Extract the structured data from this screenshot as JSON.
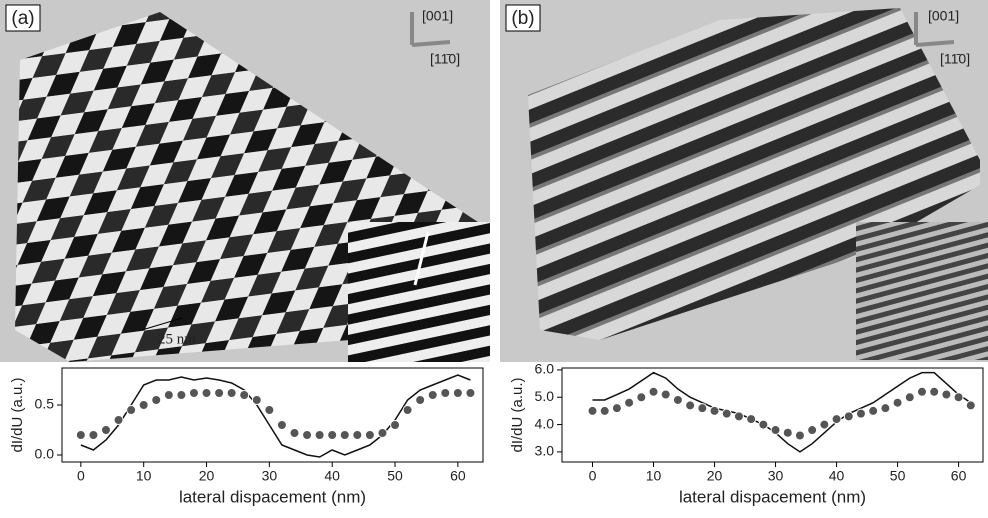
{
  "panels": [
    {
      "label": "(a)",
      "axis_up": "[001]",
      "axis_right": "[11̄0]",
      "scale_bar": "25 nm"
    },
    {
      "label": "(b)",
      "axis_up": "[001]",
      "axis_right": "[11̄0]"
    }
  ],
  "chart_data": [
    {
      "type": "line",
      "ylabel": "dI/dU (a.u.)",
      "xlabel": "lateral dispacement (nm)",
      "x": [
        0,
        2,
        4,
        6,
        8,
        10,
        12,
        14,
        16,
        18,
        20,
        22,
        24,
        26,
        28,
        30,
        32,
        34,
        36,
        38,
        40,
        42,
        44,
        46,
        48,
        50,
        52,
        54,
        56,
        58,
        60,
        62
      ],
      "series": [
        {
          "style": "line",
          "color": "#111111",
          "values": [
            0.1,
            0.05,
            0.15,
            0.3,
            0.5,
            0.7,
            0.75,
            0.75,
            0.78,
            0.75,
            0.77,
            0.75,
            0.72,
            0.65,
            0.5,
            0.3,
            0.1,
            0.05,
            0.0,
            -0.02,
            0.05,
            0.0,
            0.05,
            0.1,
            0.2,
            0.35,
            0.55,
            0.65,
            0.7,
            0.75,
            0.8,
            0.75
          ]
        },
        {
          "style": "markers",
          "color": "#555555",
          "values": [
            0.2,
            0.2,
            0.25,
            0.35,
            0.45,
            0.5,
            0.55,
            0.6,
            0.6,
            0.62,
            0.62,
            0.62,
            0.62,
            0.6,
            0.55,
            0.45,
            0.3,
            0.22,
            0.2,
            0.2,
            0.2,
            0.2,
            0.2,
            0.2,
            0.22,
            0.3,
            0.45,
            0.55,
            0.6,
            0.62,
            0.62,
            0.62
          ]
        }
      ],
      "xlim": [
        -3,
        64
      ],
      "xticks": [
        0,
        10,
        20,
        30,
        40,
        50,
        60
      ],
      "ylim": [
        -0.07,
        0.87
      ],
      "yticks": [
        {
          "value": 0,
          "label": "0.0"
        },
        0.5
      ]
    },
    {
      "type": "line",
      "ylabel": "dI/dU (a.u.)",
      "xlabel": "lateral dispacement (nm)",
      "x": [
        0,
        2,
        4,
        6,
        8,
        10,
        12,
        14,
        16,
        18,
        20,
        22,
        24,
        26,
        28,
        30,
        32,
        34,
        36,
        38,
        40,
        42,
        44,
        46,
        48,
        50,
        52,
        54,
        56,
        58,
        60,
        62
      ],
      "series": [
        {
          "style": "line",
          "color": "#111111",
          "values": [
            4.9,
            4.9,
            5.1,
            5.3,
            5.6,
            5.9,
            5.7,
            5.3,
            5.0,
            4.8,
            4.6,
            4.5,
            4.4,
            4.2,
            4.0,
            3.7,
            3.3,
            3.0,
            3.3,
            3.7,
            4.1,
            4.4,
            4.6,
            4.8,
            5.1,
            5.4,
            5.7,
            5.9,
            5.9,
            5.5,
            5.1,
            4.8
          ]
        },
        {
          "style": "markers",
          "color": "#555555",
          "values": [
            4.5,
            4.5,
            4.6,
            4.8,
            5.0,
            5.2,
            5.1,
            4.9,
            4.7,
            4.6,
            4.5,
            4.4,
            4.3,
            4.2,
            4.0,
            3.8,
            3.7,
            3.6,
            3.8,
            4.0,
            4.2,
            4.3,
            4.4,
            4.5,
            4.6,
            4.8,
            5.0,
            5.2,
            5.2,
            5.1,
            5.0,
            4.7
          ]
        }
      ],
      "xlim": [
        -5,
        64
      ],
      "xticks": [
        0,
        10,
        20,
        30,
        40,
        50,
        60
      ],
      "ylim": [
        2.63,
        6.07
      ],
      "yticks": [
        {
          "value": 3,
          "label": "3.0"
        },
        {
          "value": 4,
          "label": "4.0"
        },
        {
          "value": 5,
          "label": "5.0"
        },
        {
          "value": 6,
          "label": "6.0"
        }
      ]
    }
  ]
}
